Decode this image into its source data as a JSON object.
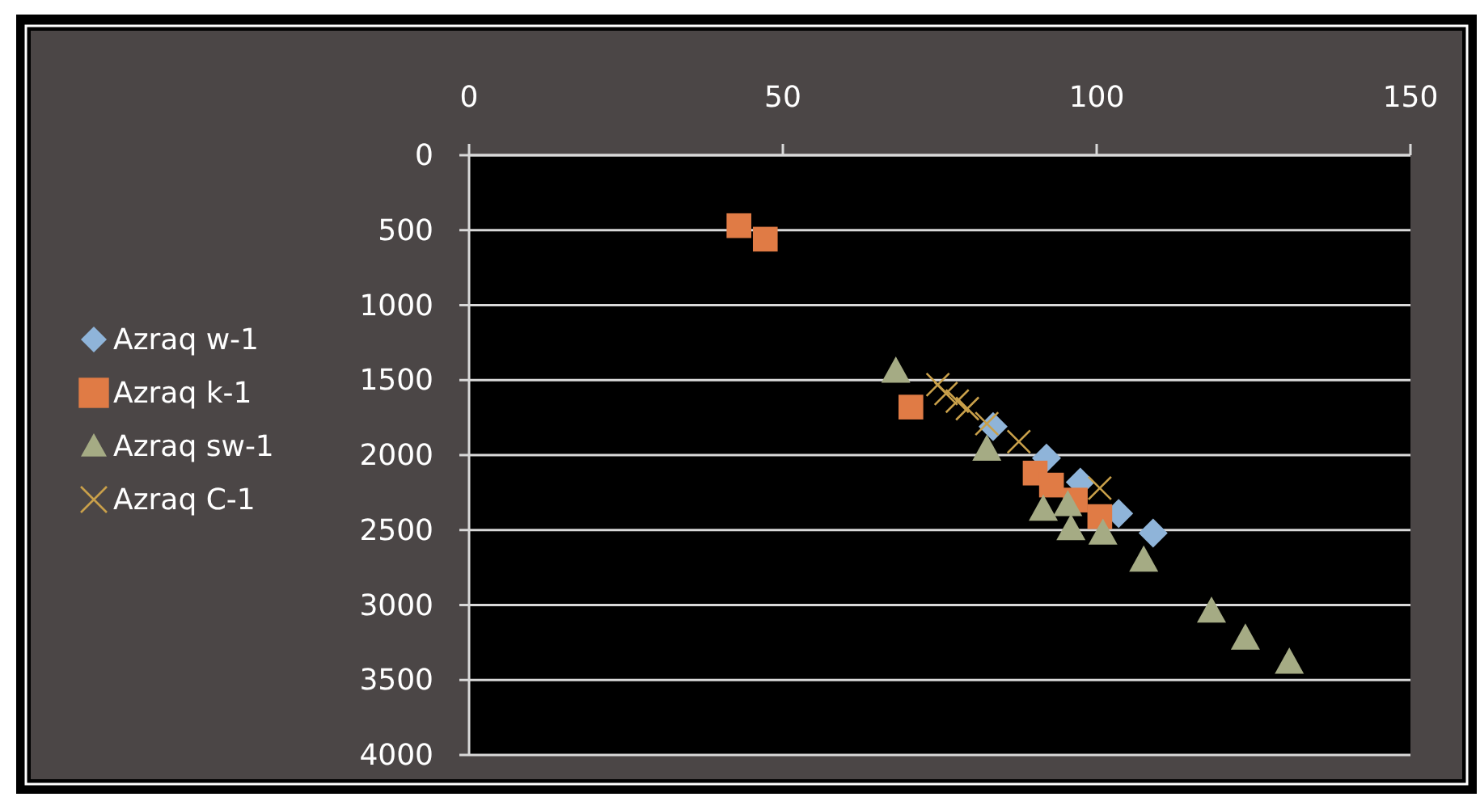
{
  "chart_data": {
    "type": "scatter",
    "xlim": [
      0,
      150
    ],
    "xticks": [
      0,
      50,
      100,
      150
    ],
    "ylim": [
      4000,
      0
    ],
    "yticks": [
      0,
      500,
      1000,
      1500,
      2000,
      2500,
      3000,
      3500,
      4000
    ],
    "grid": "y",
    "legend": "left",
    "series": [
      {
        "name": "Azraq w-1",
        "color": "#8fb4d9",
        "marker": "diamond",
        "x": [
          83.5,
          92,
          97.4,
          103.5,
          109
        ],
        "values": [
          1810,
          2020,
          2180,
          2390,
          2520
        ]
      },
      {
        "name": "Azraq k-1",
        "color": "#e07b45",
        "marker": "square",
        "x": [
          43,
          47.2,
          70.4,
          90.2,
          92.8,
          96.6,
          100.5
        ],
        "values": [
          470,
          560,
          1680,
          2120,
          2200,
          2300,
          2410
        ]
      },
      {
        "name": "Azraq sw-1",
        "color": "#a5ab84",
        "marker": "triangle",
        "x": [
          68,
          82.5,
          91.5,
          95.4,
          95.9,
          101,
          107.5,
          118.3,
          123.7,
          130.7
        ],
        "values": [
          1440,
          1960,
          2360,
          2330,
          2490,
          2520,
          2700,
          3040,
          3220,
          3380
        ]
      },
      {
        "name": "Azraq C-1",
        "color": "#c9a04a",
        "marker": "cross",
        "x": [
          74.7,
          76,
          77.8,
          79.4,
          82.5,
          87.6,
          100.5
        ],
        "values": [
          1530,
          1590,
          1640,
          1690,
          1790,
          1910,
          2220
        ]
      }
    ]
  }
}
